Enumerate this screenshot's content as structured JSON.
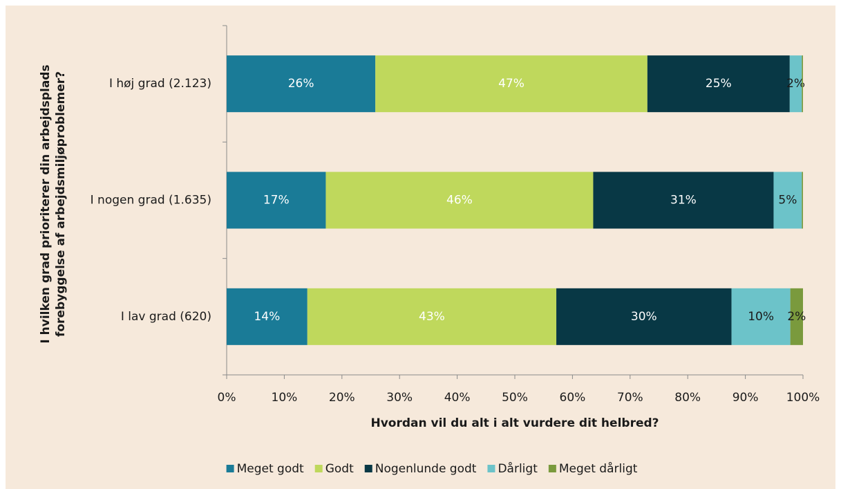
{
  "chart_data": {
    "type": "stacked_bar_horizontal",
    "ylabel": [
      "I hvilken grad prioriterer din arbejdsplads",
      "forebyggelse af arbejdsmiljøproblemer?"
    ],
    "xlabel": "Hvordan vil du alt i alt vurdere dit helbred?",
    "categories": [
      "I høj grad (2.123)",
      "I nogen grad (1.635)",
      "I lav grad (620)"
    ],
    "series": [
      {
        "name": "Meget godt",
        "color": "#1a7b97",
        "label_color": "#ffffff",
        "values": [
          25.8,
          17.2,
          14.0
        ],
        "value_labels": [
          "26%",
          "17%",
          "14%"
        ]
      },
      {
        "name": "Godt",
        "color": "#bfd85c",
        "label_color": "#ffffff",
        "values": [
          47.2,
          46.4,
          43.2
        ],
        "value_labels": [
          "47%",
          "46%",
          "43%"
        ]
      },
      {
        "name": "Nogenlunde godt",
        "color": "#083845",
        "label_color": "#ffffff",
        "values": [
          24.7,
          31.3,
          30.4
        ],
        "value_labels": [
          "25%",
          "31%",
          "30%"
        ]
      },
      {
        "name": "Dårligt",
        "color": "#6cc3c9",
        "label_color": "#1a1a1a",
        "values": [
          2.1,
          4.9,
          10.2
        ],
        "value_labels": [
          "2%",
          "5%",
          "10%"
        ]
      },
      {
        "name": "Meget dårligt",
        "color": "#7a9a3d",
        "label_color": "#1a1a1a",
        "values": [
          0.2,
          0.2,
          2.2
        ],
        "value_labels": [
          null,
          null,
          "2%"
        ]
      }
    ],
    "xlim": [
      0,
      100
    ],
    "xticks": [
      {
        "value": 0,
        "label": "0%"
      },
      {
        "value": 10,
        "label": "10%"
      },
      {
        "value": 20,
        "label": "20%"
      },
      {
        "value": 30,
        "label": "30%"
      },
      {
        "value": 40,
        "label": "40%"
      },
      {
        "value": 50,
        "label": "50%"
      },
      {
        "value": 60,
        "label": "60%"
      },
      {
        "value": 70,
        "label": "70%"
      },
      {
        "value": 80,
        "label": "80%"
      },
      {
        "value": 90,
        "label": "90%"
      },
      {
        "value": 100,
        "label": "100%"
      }
    ],
    "legend": "bottom"
  }
}
